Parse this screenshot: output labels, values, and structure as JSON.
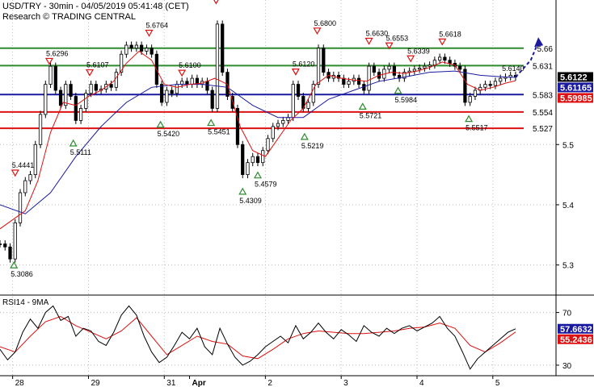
{
  "header": {
    "line1": "USD/TRY - 30min - 04/05/2019 05:41:48 (CET)",
    "line2": "Research © TRADING CENTRAL"
  },
  "chart_data": [
    {
      "type": "candlestick",
      "name": "USD/TRY",
      "ylim": [
        5.25,
        5.74
      ],
      "y_ticks": [
        5.3,
        5.4,
        5.5
      ],
      "x_labels": [
        {
          "label": "28",
          "x": 0.5
        },
        {
          "label": "29",
          "x": 3.5
        },
        {
          "label": "31",
          "x": 6.5
        },
        {
          "label": "Apr",
          "x": 7.5
        },
        {
          "label": "2",
          "x": 10.5
        },
        {
          "label": "3",
          "x": 13.5
        },
        {
          "label": "4",
          "x": 16.5
        },
        {
          "label": "5",
          "x": 19.5
        }
      ],
      "xlim": [
        0,
        22
      ],
      "levels": [
        {
          "value": 5.66,
          "label": "5.66",
          "color": "#2e8b2e"
        },
        {
          "value": 5.631,
          "label": "5.631",
          "color": "#2e8b2e"
        },
        {
          "value": 5.583,
          "label": "5.583",
          "color": "#1a1aa0"
        },
        {
          "value": 5.554,
          "label": "5.554",
          "color": "#dd1111"
        },
        {
          "value": 5.527,
          "label": "5.527",
          "color": "#dd1111"
        }
      ],
      "price_tags": [
        {
          "value": 5.6122,
          "label": "5.6122",
          "bg": "#000000",
          "fg": "#ffffff"
        },
        {
          "value": 5.61165,
          "label": "5.61165",
          "bg": "#1a1aa0",
          "fg": "#ffffff"
        },
        {
          "value": 5.59985,
          "label": "5.59985",
          "bg": "#dd1111",
          "fg": "#ffffff"
        }
      ],
      "annotations": [
        {
          "x": 0.6,
          "y": 5.4441,
          "label": "5.4441",
          "kind": "high"
        },
        {
          "x": 0.55,
          "y": 5.3086,
          "label": "5.3086",
          "kind": "low"
        },
        {
          "x": 1.95,
          "y": 5.6296,
          "label": "5.6296",
          "kind": "high"
        },
        {
          "x": 2.9,
          "y": 5.5111,
          "label": "5.5111",
          "kind": "low"
        },
        {
          "x": 3.55,
          "y": 5.6107,
          "label": "5.6107",
          "kind": "high"
        },
        {
          "x": 5.9,
          "y": 5.6764,
          "label": "5.6764",
          "kind": "high"
        },
        {
          "x": 6.35,
          "y": 5.542,
          "label": "5.5420",
          "kind": "low"
        },
        {
          "x": 7.2,
          "y": 5.61,
          "label": "5.6100",
          "kind": "high"
        },
        {
          "x": 8.35,
          "y": 5.5451,
          "label": "5.5451",
          "kind": "low"
        },
        {
          "x": 8.55,
          "y": 5.73,
          "label": "",
          "kind": "high"
        },
        {
          "x": 9.6,
          "y": 5.4309,
          "label": "5.4309",
          "kind": "low"
        },
        {
          "x": 10.2,
          "y": 5.4579,
          "label": "5.4579",
          "kind": "low"
        },
        {
          "x": 11.7,
          "y": 5.612,
          "label": "5.6120",
          "kind": "high"
        },
        {
          "x": 12.05,
          "y": 5.5219,
          "label": "5.5219",
          "kind": "low"
        },
        {
          "x": 12.55,
          "y": 5.68,
          "label": "5.6800",
          "kind": "high"
        },
        {
          "x": 14.35,
          "y": 5.5721,
          "label": "5.5721",
          "kind": "low"
        },
        {
          "x": 14.6,
          "y": 5.663,
          "label": "5.6630",
          "kind": "high"
        },
        {
          "x": 15.4,
          "y": 5.6553,
          "label": "5.6553",
          "kind": "high"
        },
        {
          "x": 15.75,
          "y": 5.5984,
          "label": "5.5984",
          "kind": "low"
        },
        {
          "x": 16.25,
          "y": 5.6339,
          "label": "5.6339",
          "kind": "high"
        },
        {
          "x": 17.5,
          "y": 5.6618,
          "label": "5.6618",
          "kind": "high"
        },
        {
          "x": 18.55,
          "y": 5.5517,
          "label": "5.5517",
          "kind": "low"
        },
        {
          "x": 20.3,
          "y": 5.614,
          "label": "5.6140",
          "kind": "none"
        }
      ],
      "close": [
        [
          0.0,
          5.335
        ],
        [
          0.2,
          5.33
        ],
        [
          0.4,
          5.31
        ],
        [
          0.6,
          5.37
        ],
        [
          0.8,
          5.42
        ],
        [
          1.0,
          5.44
        ],
        [
          1.2,
          5.45
        ],
        [
          1.4,
          5.5
        ],
        [
          1.6,
          5.55
        ],
        [
          1.8,
          5.6
        ],
        [
          2.0,
          5.63
        ],
        [
          2.2,
          5.59
        ],
        [
          2.4,
          5.565
        ],
        [
          2.6,
          5.6
        ],
        [
          2.8,
          5.58
        ],
        [
          3.0,
          5.54
        ],
        [
          3.2,
          5.56
        ],
        [
          3.4,
          5.585
        ],
        [
          3.6,
          5.6
        ],
        [
          3.8,
          5.59
        ],
        [
          4.0,
          5.592
        ],
        [
          4.2,
          5.6
        ],
        [
          4.4,
          5.595
        ],
        [
          4.6,
          5.62
        ],
        [
          4.8,
          5.65
        ],
        [
          5.0,
          5.665
        ],
        [
          5.2,
          5.66
        ],
        [
          5.4,
          5.665
        ],
        [
          5.6,
          5.655
        ],
        [
          5.8,
          5.66
        ],
        [
          6.0,
          5.65
        ],
        [
          6.2,
          5.6
        ],
        [
          6.4,
          5.57
        ],
        [
          6.6,
          5.59
        ],
        [
          6.8,
          5.585
        ],
        [
          7.0,
          5.6
        ],
        [
          7.2,
          5.605
        ],
        [
          7.4,
          5.6
        ],
        [
          7.6,
          5.61
        ],
        [
          7.8,
          5.6
        ],
        [
          8.0,
          5.605
        ],
        [
          8.2,
          5.59
        ],
        [
          8.4,
          5.56
        ],
        [
          8.6,
          5.7
        ],
        [
          8.8,
          5.62
        ],
        [
          9.0,
          5.58
        ],
        [
          9.2,
          5.56
        ],
        [
          9.4,
          5.5
        ],
        [
          9.6,
          5.45
        ],
        [
          9.8,
          5.47
        ],
        [
          10.0,
          5.48
        ],
        [
          10.2,
          5.47
        ],
        [
          10.4,
          5.49
        ],
        [
          10.6,
          5.51
        ],
        [
          10.8,
          5.53
        ],
        [
          11.0,
          5.535
        ],
        [
          11.2,
          5.54
        ],
        [
          11.4,
          5.545
        ],
        [
          11.6,
          5.6
        ],
        [
          11.8,
          5.58
        ],
        [
          12.0,
          5.56
        ],
        [
          12.2,
          5.57
        ],
        [
          12.4,
          5.6
        ],
        [
          12.6,
          5.66
        ],
        [
          12.8,
          5.62
        ],
        [
          13.0,
          5.61
        ],
        [
          13.2,
          5.615
        ],
        [
          13.4,
          5.61
        ],
        [
          13.6,
          5.6
        ],
        [
          13.8,
          5.605
        ],
        [
          14.0,
          5.61
        ],
        [
          14.2,
          5.6
        ],
        [
          14.4,
          5.59
        ],
        [
          14.6,
          5.63
        ],
        [
          14.8,
          5.62
        ],
        [
          15.0,
          5.61
        ],
        [
          15.2,
          5.625
        ],
        [
          15.4,
          5.63
        ],
        [
          15.6,
          5.615
        ],
        [
          15.8,
          5.61
        ],
        [
          16.0,
          5.62
        ],
        [
          16.2,
          5.622
        ],
        [
          16.4,
          5.625
        ],
        [
          16.6,
          5.627
        ],
        [
          16.8,
          5.63
        ],
        [
          17.0,
          5.632
        ],
        [
          17.2,
          5.64
        ],
        [
          17.4,
          5.645
        ],
        [
          17.6,
          5.64
        ],
        [
          17.8,
          5.635
        ],
        [
          18.0,
          5.63
        ],
        [
          18.2,
          5.625
        ],
        [
          18.4,
          5.57
        ],
        [
          18.6,
          5.58
        ],
        [
          18.8,
          5.59
        ],
        [
          19.0,
          5.595
        ],
        [
          19.2,
          5.6
        ],
        [
          19.4,
          5.598
        ],
        [
          19.6,
          5.605
        ],
        [
          19.8,
          5.61
        ],
        [
          20.0,
          5.612
        ],
        [
          20.2,
          5.615
        ],
        [
          20.4,
          5.6122
        ]
      ],
      "ma_red": [
        [
          0.0,
          5.36
        ],
        [
          1.0,
          5.39
        ],
        [
          1.5,
          5.44
        ],
        [
          2.0,
          5.52
        ],
        [
          2.5,
          5.57
        ],
        [
          3.0,
          5.565
        ],
        [
          3.5,
          5.58
        ],
        [
          4.0,
          5.59
        ],
        [
          4.5,
          5.605
        ],
        [
          5.0,
          5.635
        ],
        [
          5.5,
          5.655
        ],
        [
          6.0,
          5.64
        ],
        [
          6.5,
          5.6
        ],
        [
          7.0,
          5.595
        ],
        [
          7.5,
          5.6
        ],
        [
          8.0,
          5.602
        ],
        [
          8.5,
          5.61
        ],
        [
          9.0,
          5.6
        ],
        [
          9.5,
          5.53
        ],
        [
          10.0,
          5.49
        ],
        [
          10.5,
          5.48
        ],
        [
          11.0,
          5.51
        ],
        [
          11.5,
          5.54
        ],
        [
          12.0,
          5.56
        ],
        [
          12.5,
          5.6
        ],
        [
          13.0,
          5.615
        ],
        [
          13.5,
          5.61
        ],
        [
          14.0,
          5.607
        ],
        [
          14.5,
          5.605
        ],
        [
          15.0,
          5.615
        ],
        [
          15.5,
          5.62
        ],
        [
          16.0,
          5.618
        ],
        [
          16.5,
          5.622
        ],
        [
          17.0,
          5.628
        ],
        [
          17.5,
          5.637
        ],
        [
          18.0,
          5.632
        ],
        [
          18.5,
          5.6
        ],
        [
          19.0,
          5.59
        ],
        [
          19.5,
          5.595
        ],
        [
          20.0,
          5.602
        ],
        [
          20.4,
          5.606
        ]
      ],
      "ma_blue": [
        [
          0.0,
          5.4
        ],
        [
          1.0,
          5.385
        ],
        [
          2.0,
          5.42
        ],
        [
          3.0,
          5.48
        ],
        [
          4.0,
          5.53
        ],
        [
          5.0,
          5.57
        ],
        [
          6.0,
          5.595
        ],
        [
          7.0,
          5.6
        ],
        [
          8.0,
          5.6
        ],
        [
          9.0,
          5.595
        ],
        [
          10.0,
          5.565
        ],
        [
          11.0,
          5.545
        ],
        [
          12.0,
          5.545
        ],
        [
          12.5,
          5.56
        ],
        [
          13.0,
          5.575
        ],
        [
          14.0,
          5.59
        ],
        [
          15.0,
          5.605
        ],
        [
          16.0,
          5.612
        ],
        [
          17.0,
          5.62
        ],
        [
          18.0,
          5.622
        ],
        [
          19.0,
          5.615
        ],
        [
          20.0,
          5.612
        ],
        [
          20.4,
          5.6116
        ]
      ],
      "projection": [
        [
          20.4,
          5.612
        ],
        [
          21.0,
          5.64
        ],
        [
          21.3,
          5.67
        ]
      ]
    },
    {
      "type": "line",
      "name": "RSI14 - 9MA",
      "ylim": [
        22,
        82
      ],
      "y_ticks": [
        30,
        70
      ],
      "price_tags": [
        {
          "value": 57.6632,
          "label": "57.6632",
          "bg": "#1a1aa0",
          "fg": "#ffffff"
        },
        {
          "value": 55.2436,
          "label": "55.2436",
          "bg": "#dd1111",
          "fg": "#ffffff"
        }
      ],
      "rsi": [
        [
          0.0,
          42
        ],
        [
          0.3,
          34
        ],
        [
          0.6,
          40
        ],
        [
          0.9,
          55
        ],
        [
          1.2,
          65
        ],
        [
          1.5,
          58
        ],
        [
          1.8,
          70
        ],
        [
          2.1,
          75
        ],
        [
          2.4,
          64
        ],
        [
          2.7,
          67
        ],
        [
          3.0,
          52
        ],
        [
          3.3,
          58
        ],
        [
          3.6,
          56
        ],
        [
          3.9,
          48
        ],
        [
          4.2,
          45
        ],
        [
          4.5,
          55
        ],
        [
          4.8,
          68
        ],
        [
          5.1,
          75
        ],
        [
          5.4,
          68
        ],
        [
          5.7,
          52
        ],
        [
          6.0,
          40
        ],
        [
          6.3,
          32
        ],
        [
          6.6,
          36
        ],
        [
          6.9,
          45
        ],
        [
          7.2,
          55
        ],
        [
          7.5,
          50
        ],
        [
          7.8,
          58
        ],
        [
          8.1,
          44
        ],
        [
          8.4,
          38
        ],
        [
          8.7,
          58
        ],
        [
          9.0,
          46
        ],
        [
          9.3,
          36
        ],
        [
          9.6,
          30
        ],
        [
          9.9,
          33
        ],
        [
          10.2,
          38
        ],
        [
          10.5,
          44
        ],
        [
          10.8,
          48
        ],
        [
          11.1,
          52
        ],
        [
          11.4,
          47
        ],
        [
          11.7,
          60
        ],
        [
          12.0,
          50
        ],
        [
          12.3,
          55
        ],
        [
          12.6,
          62
        ],
        [
          12.9,
          55
        ],
        [
          13.2,
          50
        ],
        [
          13.5,
          57
        ],
        [
          13.8,
          53
        ],
        [
          14.1,
          48
        ],
        [
          14.4,
          60
        ],
        [
          14.7,
          55
        ],
        [
          15.0,
          52
        ],
        [
          15.3,
          58
        ],
        [
          15.6,
          54
        ],
        [
          15.9,
          58
        ],
        [
          16.2,
          60
        ],
        [
          16.5,
          56
        ],
        [
          16.8,
          59
        ],
        [
          17.1,
          62
        ],
        [
          17.4,
          67
        ],
        [
          17.7,
          58
        ],
        [
          18.0,
          52
        ],
        [
          18.3,
          40
        ],
        [
          18.6,
          27
        ],
        [
          18.9,
          35
        ],
        [
          19.2,
          40
        ],
        [
          19.5,
          45
        ],
        [
          19.8,
          50
        ],
        [
          20.1,
          55
        ],
        [
          20.4,
          57.66
        ]
      ],
      "ma": [
        [
          0.0,
          44
        ],
        [
          0.6,
          40
        ],
        [
          1.2,
          52
        ],
        [
          1.8,
          63
        ],
        [
          2.4,
          67
        ],
        [
          3.0,
          60
        ],
        [
          3.6,
          55
        ],
        [
          4.2,
          50
        ],
        [
          4.8,
          56
        ],
        [
          5.4,
          66
        ],
        [
          6.0,
          52
        ],
        [
          6.6,
          38
        ],
        [
          7.2,
          45
        ],
        [
          7.8,
          52
        ],
        [
          8.4,
          48
        ],
        [
          9.0,
          46
        ],
        [
          9.6,
          37
        ],
        [
          10.2,
          35
        ],
        [
          10.8,
          42
        ],
        [
          11.4,
          50
        ],
        [
          12.0,
          54
        ],
        [
          12.6,
          56
        ],
        [
          13.2,
          55
        ],
        [
          13.8,
          54
        ],
        [
          14.4,
          54
        ],
        [
          15.0,
          55
        ],
        [
          15.6,
          56
        ],
        [
          16.2,
          58
        ],
        [
          16.8,
          59
        ],
        [
          17.4,
          62
        ],
        [
          18.0,
          58
        ],
        [
          18.6,
          45
        ],
        [
          19.2,
          40
        ],
        [
          19.8,
          47
        ],
        [
          20.4,
          55.24
        ]
      ]
    }
  ]
}
